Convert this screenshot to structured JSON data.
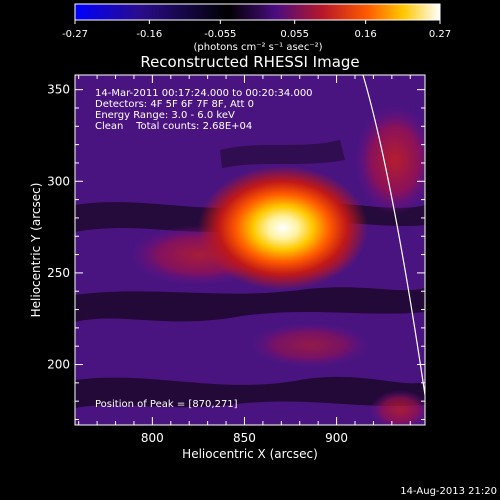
{
  "colorbar": {
    "ticks": [
      "-0.27",
      "-0.16",
      "-0.055",
      "0.055",
      "0.16",
      "0.27"
    ],
    "tick_values": [
      -0.27,
      -0.16,
      -0.055,
      0.055,
      0.16,
      0.27
    ],
    "vmin": -0.27,
    "vmax": 0.27,
    "units": "(photons cm⁻² s⁻¹ asec⁻²)",
    "colors": [
      "#0000ff",
      "#1f0a8a",
      "#000000",
      "#5a1090",
      "#c01818",
      "#ff6a00",
      "#ffd000",
      "#ffffff"
    ]
  },
  "title": "Reconstructed RHESSI Image",
  "info": {
    "time_range": "14-Mar-2011 00:17:24.000 to 00:20:34.000",
    "detectors": "Detectors: 4F 5F 6F 7F 8F, Att 0",
    "energy": "Energy Range: 3.0 - 6.0 keV",
    "clean": "Clean    Total counts: 2.68E+04"
  },
  "peak_label": "Position of Peak = [870,271]",
  "x_axis": {
    "label": "Heliocentric X (arcsec)",
    "ticks": [
      {
        "value": 800,
        "label": "800"
      },
      {
        "value": 850,
        "label": "850"
      },
      {
        "value": 900,
        "label": "900"
      }
    ],
    "range": [
      758,
      948
    ]
  },
  "y_axis": {
    "label": "Heliocentric Y (arcsec)",
    "ticks": [
      {
        "value": 200,
        "label": "200"
      },
      {
        "value": 250,
        "label": "250"
      },
      {
        "value": 300,
        "label": "300"
      },
      {
        "value": 350,
        "label": "350"
      }
    ],
    "range": [
      167,
      358
    ]
  },
  "footer_date": "14-Aug-2013 21:20"
}
